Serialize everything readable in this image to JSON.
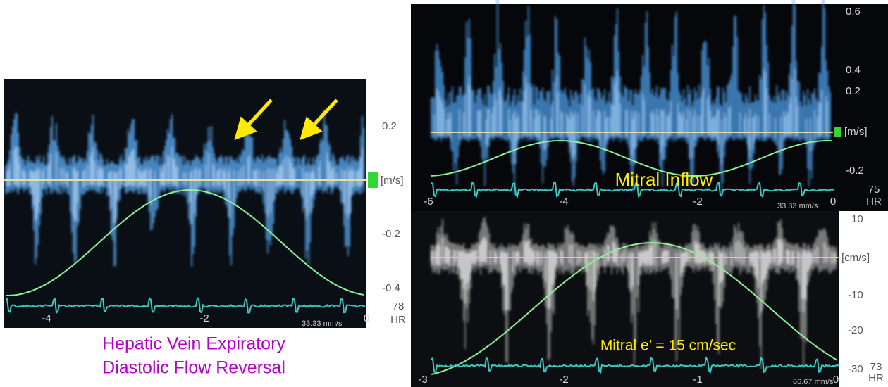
{
  "left_panel": {
    "y_ticks": [
      "0.2",
      "-0.2",
      "-0.4"
    ],
    "unit": "[m/s]",
    "heart_rate": "78",
    "hr_label": "HR",
    "x_ticks": [
      "-4",
      "-2",
      "0"
    ],
    "sweep_speed": "33.33 mm/s"
  },
  "caption": [
    "Hepatic Vein Expiratory",
    "Diastolic Flow Reversal"
  ],
  "top_right_panel": {
    "y_ticks": [
      "0.6",
      "0.4",
      "0.2",
      "-0.2"
    ],
    "unit": "[m/s]",
    "heart_rate": "75",
    "hr_label": "HR",
    "x_ticks": [
      "-6",
      "-4",
      "-2",
      "0"
    ],
    "sweep_speed": "33.33 mm/s",
    "label": "Mitral Inflow"
  },
  "bottom_right_panel": {
    "y_ticks": [
      "10",
      "-10",
      "-20",
      "-30"
    ],
    "unit": "[cm/s]",
    "heart_rate": "73",
    "hr_label": "HR",
    "x_ticks": [
      "-3",
      "-2",
      "-1",
      "0"
    ],
    "sweep_speed": "66.67 mm/s",
    "label": "Mitral e’ = 15 cm/sec"
  }
}
